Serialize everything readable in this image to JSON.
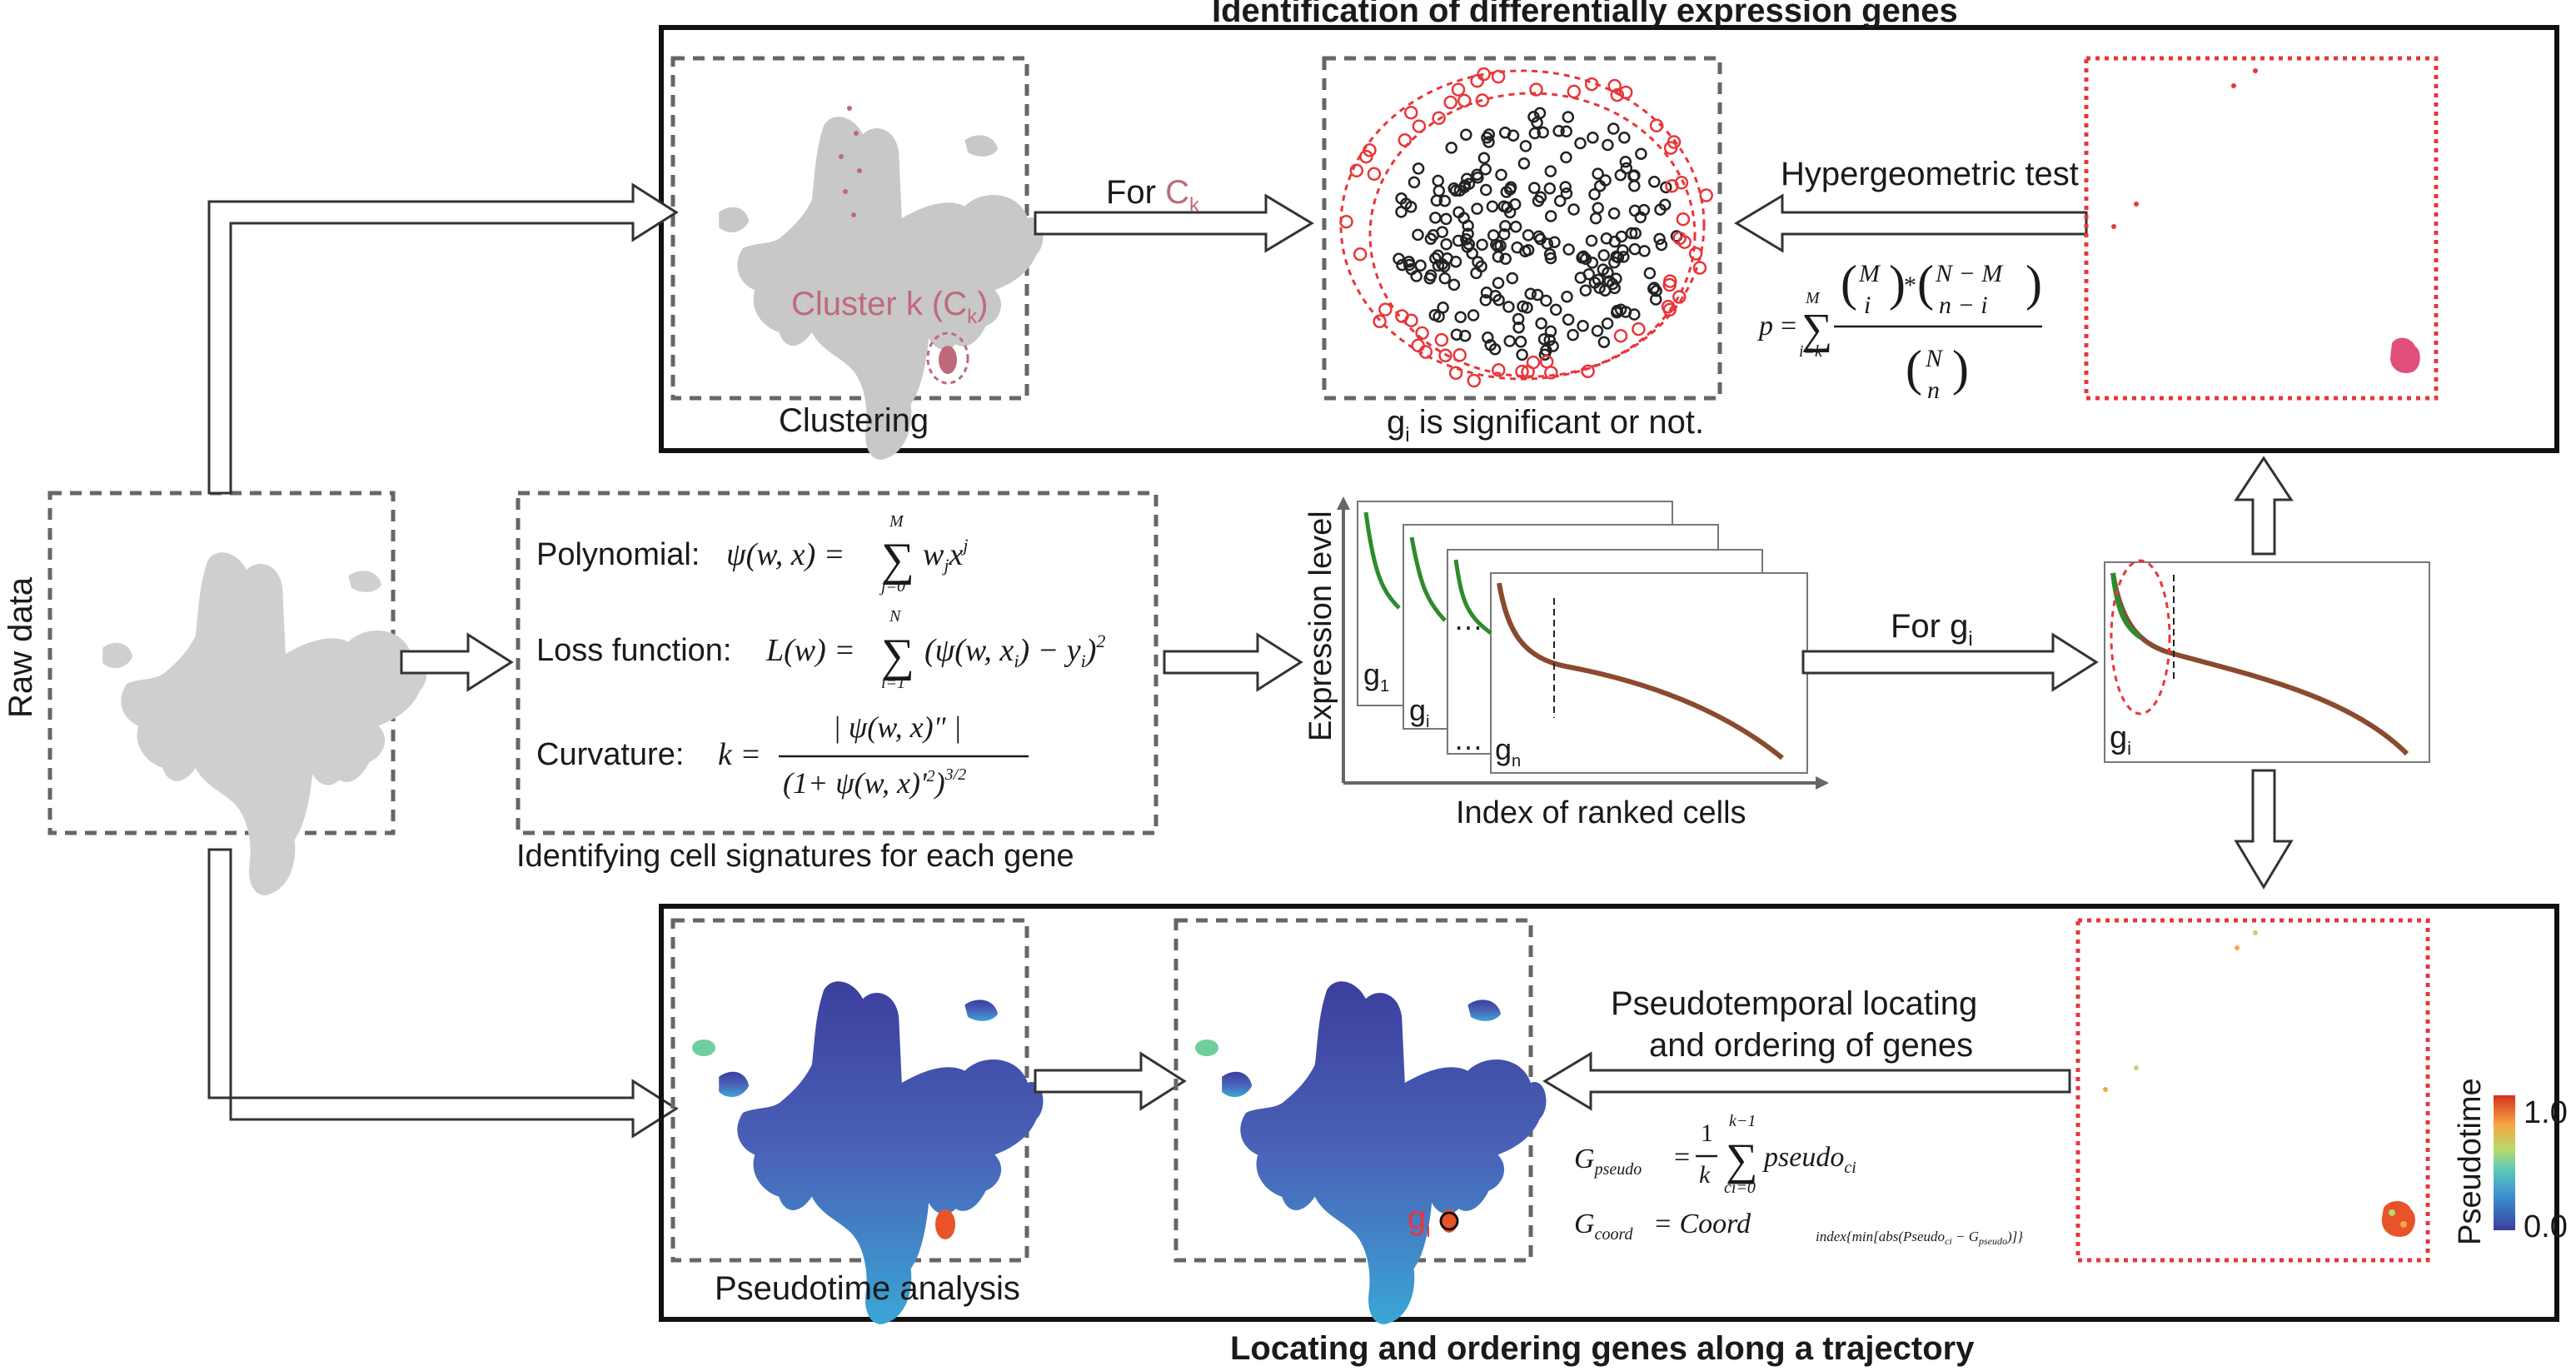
{
  "top_panel": {
    "title": "Identification of  differentially expression genes",
    "clustering_caption": "Clustering",
    "cluster_label": "Cluster k (C",
    "cluster_sub": "k",
    "cluster_close": ")",
    "for_label": "For ",
    "for_sym": "C",
    "for_sub": "k",
    "sig_g": "g",
    "sig_sub": "i",
    "sig_rest": " is significant or not.",
    "hyper_label": "Hypergeometric test",
    "hyper_p": "p",
    "hyper_eq": "=",
    "hyper_sum_top": "M",
    "hyper_sum_bot": "i=k",
    "hyper_M": "M",
    "hyper_i": "i",
    "hyper_star": "*",
    "hyper_NM": "N − M",
    "hyper_ni": "n − i",
    "hyper_N": "N",
    "hyper_n": "n"
  },
  "middle_panel": {
    "raw_data": "Raw  data",
    "poly_label": "Polynomial:",
    "poly_lhs": "ψ(w, x) =",
    "poly_top": "M",
    "poly_bot": "j=0",
    "poly_rhs": "w",
    "poly_rhs_sub": "j",
    "poly_rhs_x": "x",
    "poly_rhs_sup": "j",
    "loss_label": "Loss function:",
    "loss_lhs": "L(w) =",
    "loss_top": "N",
    "loss_bot": "i=1",
    "loss_rhs": "(ψ(w, x",
    "loss_rhs_sub": "i",
    "loss_rhs_mid": ") − y",
    "loss_rhs_sub2": "i",
    "loss_rhs_end": ")",
    "loss_rhs_sup": "2",
    "curv_label": "Curvature:",
    "curv_lhs": "k =",
    "curv_num": "| ψ(w, x)\" |",
    "curv_den": "(1+ ψ(w, x)'",
    "curv_den_sup": "2",
    "curv_den_end": ")",
    "curv_den_sup2": "3/2",
    "sig_caption": "Identifying cell signatures for each gene",
    "y_axis": "Expression level",
    "x_axis": "Index of ranked cells",
    "g1": "g",
    "g1_sub": "1",
    "gi": "g",
    "gi_sub": "i",
    "ellipsis": "…",
    "gn": "g",
    "gn_sub": "n",
    "for_gi": "For g",
    "for_gi_sub": "i",
    "right_gi": "g",
    "right_gi_sub": "i"
  },
  "bottom_panel": {
    "title": "Locating and ordering genes along a trajectory",
    "pseudotime_caption": "Pseudotime analysis",
    "gi_label": "g",
    "gi_sub": "i",
    "locating_l1": "Pseudotemporal locating",
    "locating_l2": "and ordering of genes",
    "gp_lhs": "G",
    "gp_lhs_sub": "pseudo",
    "gp_eq": "=",
    "gp_frac_num": "1",
    "gp_frac_den": "k",
    "gp_sum_top": "k−1",
    "gp_sum_bot": "ci=0",
    "gp_rhs": "pseudo",
    "gp_rhs_sub": "ci",
    "gc_lhs": "G",
    "gc_lhs_sub": "coord",
    "gc_eq": "= Coord",
    "gc_sub": "index{min[abs(Pseudo",
    "gc_sub2": "ci",
    "gc_sub3": " − G",
    "gc_sub4": "pseudo",
    "gc_sub5": ")]}",
    "colorbar_title": "Pseudotime",
    "colorbar_max": "1.0",
    "colorbar_min": "0.0"
  },
  "colors": {
    "dashed_gray": "#666666",
    "red_dashed": "#e8363a",
    "cluster_pink": "#c0697b",
    "gene_red": "#e8363a",
    "umap_gray": "#c8c8c8",
    "umap_blue": "#3b4aa8",
    "curve_green": "#2e8b2e",
    "curve_red": "#c0392b"
  }
}
